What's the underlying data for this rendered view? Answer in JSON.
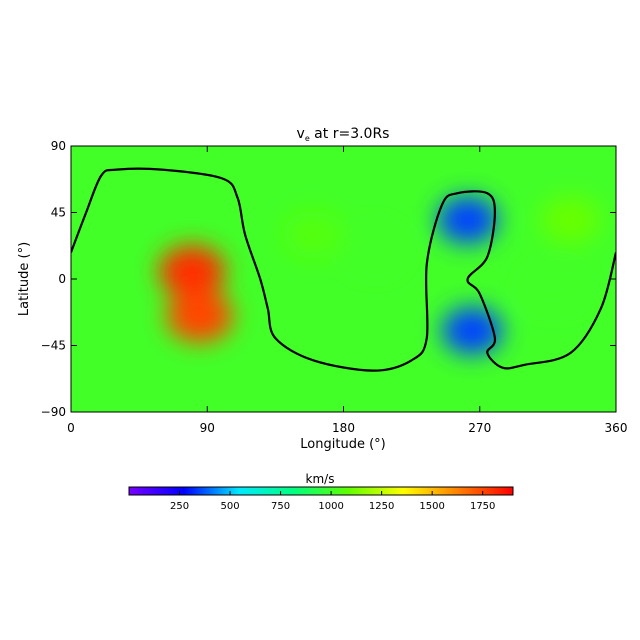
{
  "chart_data": {
    "type": "heatmap",
    "title": {
      "base": "v",
      "subscript": "e",
      "rest": " at r=3.0Rs"
    },
    "xlabel": "Longitude (°)",
    "ylabel": "Latitude (°)",
    "xlim": [
      0,
      360
    ],
    "ylim": [
      -90,
      90
    ],
    "x_ticks": [
      "0",
      "90",
      "180",
      "270",
      "360"
    ],
    "y_ticks": [
      "90",
      "45",
      "0",
      "−45",
      "−90"
    ],
    "colorbar": {
      "label": "km/s",
      "range": [
        0,
        1900
      ],
      "ticks": [
        "250",
        "500",
        "750",
        "1000",
        "1250",
        "1500",
        "1750"
      ],
      "colors": [
        "#7700ff",
        "#0000ff",
        "#00e8ff",
        "#00ff80",
        "#60ff00",
        "#ffff00",
        "#ff8000",
        "#ff0000"
      ]
    },
    "background_value": 1000,
    "features": [
      {
        "kind": "high",
        "lon": 80,
        "lat": 5,
        "value": 1800
      },
      {
        "kind": "high",
        "lon": 85,
        "lat": -25,
        "value": 1750
      },
      {
        "kind": "moderate",
        "lon": 160,
        "lat": 30,
        "value": 1050
      },
      {
        "kind": "moderate",
        "lon": 200,
        "lat": 20,
        "value": 1000
      },
      {
        "kind": "moderate",
        "lon": 330,
        "lat": 40,
        "value": 1100
      },
      {
        "kind": "moderate",
        "lon": 320,
        "lat": -5,
        "value": 1000
      },
      {
        "kind": "low",
        "lon": 262,
        "lat": 40,
        "value": 350
      },
      {
        "kind": "low",
        "lon": 265,
        "lat": -35,
        "value": 350
      }
    ],
    "neutral_line": [
      [
        0,
        18
      ],
      [
        10,
        45
      ],
      [
        20,
        70
      ],
      [
        30,
        74
      ],
      [
        60,
        74
      ],
      [
        100,
        68
      ],
      [
        110,
        55
      ],
      [
        115,
        30
      ],
      [
        125,
        0
      ],
      [
        130,
        -20
      ],
      [
        135,
        -40
      ],
      [
        160,
        -55
      ],
      [
        200,
        -62
      ],
      [
        225,
        -55
      ],
      [
        235,
        -40
      ],
      [
        235,
        10
      ],
      [
        245,
        50
      ],
      [
        255,
        58
      ],
      [
        275,
        58
      ],
      [
        280,
        45
      ],
      [
        275,
        15
      ],
      [
        262,
        0
      ],
      [
        270,
        -10
      ],
      [
        280,
        -40
      ],
      [
        275,
        -50
      ],
      [
        285,
        -60
      ],
      [
        300,
        -58
      ],
      [
        330,
        -50
      ],
      [
        350,
        -20
      ],
      [
        360,
        18
      ]
    ]
  }
}
